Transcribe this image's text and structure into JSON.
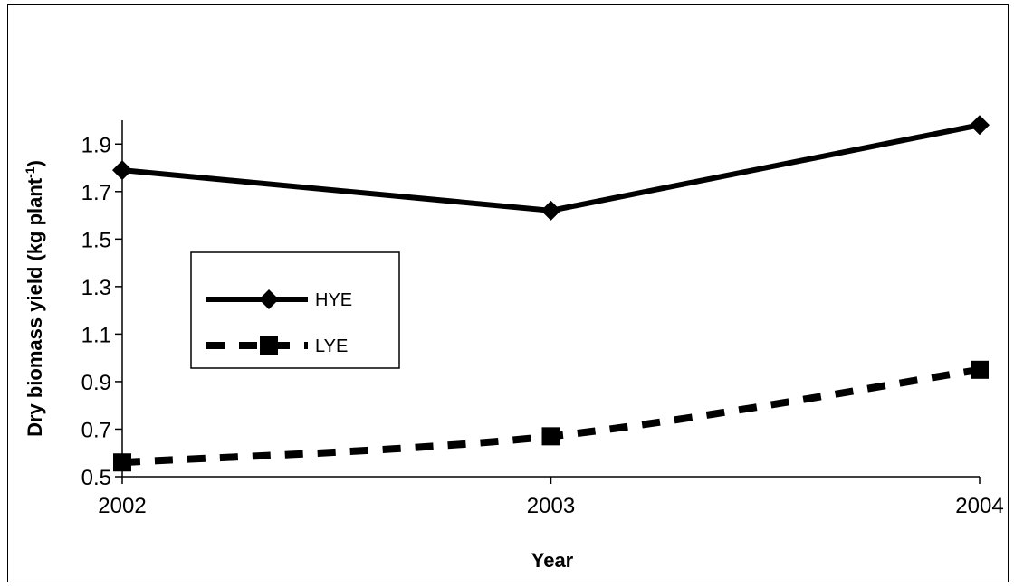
{
  "chart_data": {
    "type": "line",
    "x": [
      2002,
      2003,
      2004
    ],
    "series": [
      {
        "name": "HYE",
        "values": [
          1.79,
          1.62,
          1.98
        ],
        "line_style": "solid",
        "marker": "diamond",
        "color": "#000000"
      },
      {
        "name": "LYE",
        "values": [
          0.56,
          0.67,
          0.95
        ],
        "line_style": "dashed",
        "marker": "square",
        "color": "#000000"
      }
    ],
    "xlabel": "Year",
    "ylabel": "Dry biomass yield (kg plant",
    "ylabel_superscript": "-1",
    "ylabel_suffix": ")",
    "ylim": [
      0.5,
      2.0
    ],
    "yticks": [
      "0.5",
      "0.7",
      "0.9",
      "1.1",
      "1.3",
      "1.5",
      "1.7",
      "1.9"
    ],
    "xticks": [
      "2002",
      "2003",
      "2004"
    ],
    "grid": false,
    "legend_position": "center-left"
  }
}
